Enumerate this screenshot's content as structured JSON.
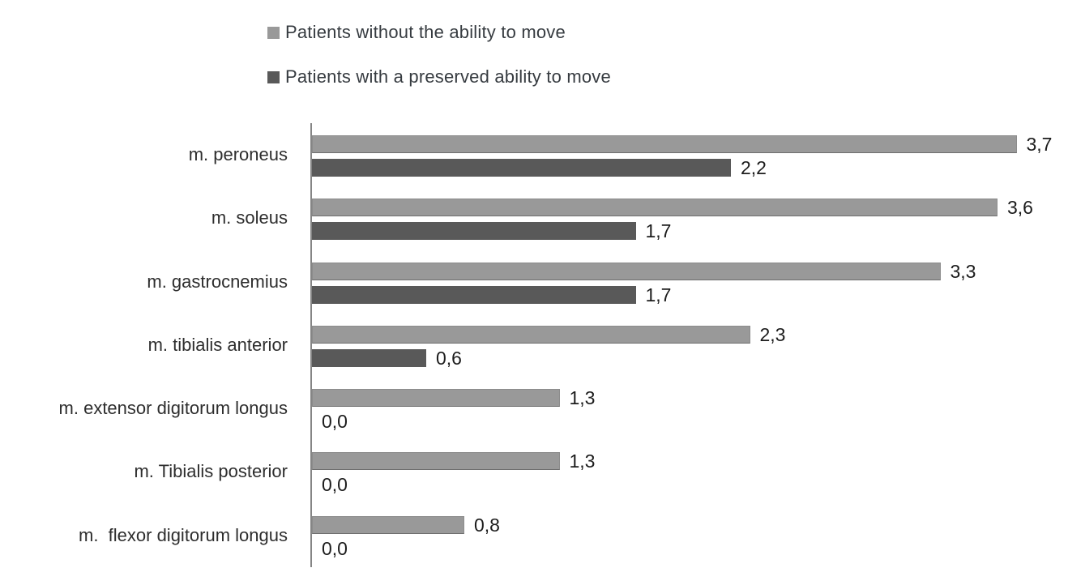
{
  "legend": {
    "items": [
      {
        "label": "Patients without the ability to move",
        "color": "#999999",
        "series": "without-ability"
      },
      {
        "label": "Patients with a preserved ability to move",
        "color": "#595959",
        "series": "with-ability"
      }
    ]
  },
  "chart_data": {
    "type": "bar",
    "orientation": "horizontal",
    "title": "",
    "xlabel": "",
    "ylabel": "",
    "xlim": [
      0,
      4
    ],
    "grid": false,
    "legend_position": "top",
    "value_label_format": "comma-decimal",
    "categories": [
      "m. peroneus",
      "m. soleus",
      "m. gastrocnemius",
      "m. tibialis anterior",
      "m. extensor digitorum longus",
      "m. Tibialis posterior",
      "m.  flexor digitorum longus"
    ],
    "series": [
      {
        "name": "Patients without the ability to move",
        "color": "#999999",
        "values": [
          3.7,
          3.6,
          3.3,
          2.3,
          1.3,
          1.3,
          0.8
        ],
        "labels": [
          "3,7",
          "3,6",
          "3,3",
          "2,3",
          "1,3",
          "1,3",
          "0,8"
        ]
      },
      {
        "name": "Patients with a preserved ability to move",
        "color": "#595959",
        "values": [
          2.2,
          1.7,
          1.7,
          0.6,
          0.0,
          0.0,
          0.0
        ],
        "labels": [
          "2,2",
          "1,7",
          "1,7",
          "0,6",
          "0,0",
          "0,0",
          "0,0"
        ]
      }
    ]
  }
}
